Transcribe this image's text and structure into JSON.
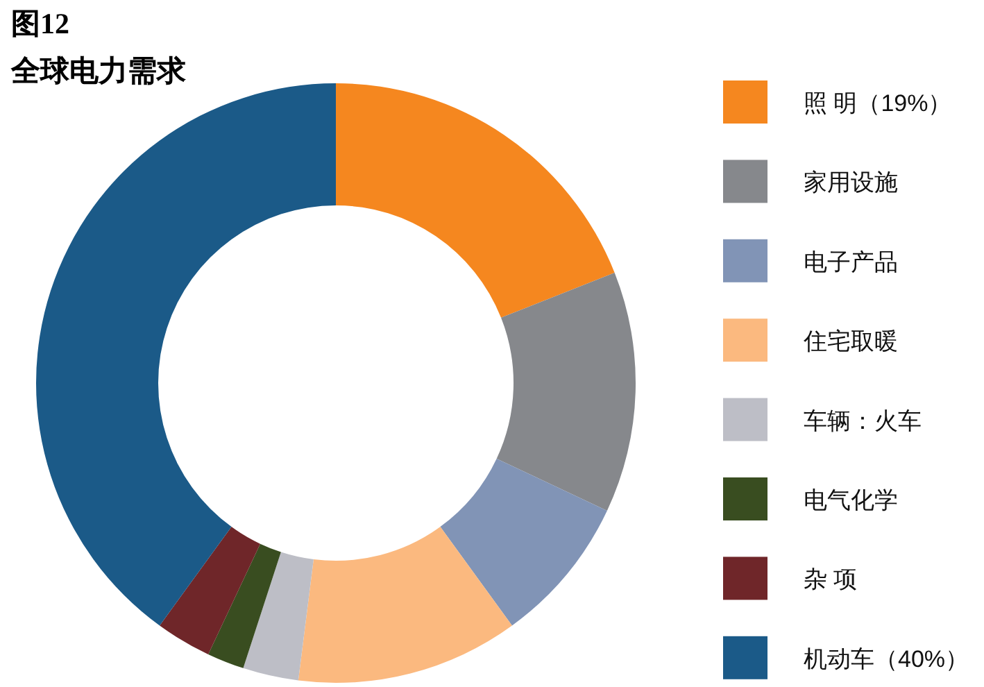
{
  "chart_data": {
    "type": "donut",
    "title": "图12",
    "subtitle": "全球电力需求",
    "categories": [
      "照 明（19%）",
      "家用设施",
      "电子产品",
      "住宅取暖",
      "车辆：火车",
      "电气化学",
      "杂 项",
      "机动车（40%）"
    ],
    "values": [
      19,
      13,
      8,
      12,
      3,
      2,
      3,
      40
    ],
    "colors": [
      "#f5871f",
      "#86888c",
      "#8194b6",
      "#fbb97f",
      "#bdbec6",
      "#394d20",
      "#6f2629",
      "#1b5a88"
    ],
    "legend": "right"
  }
}
